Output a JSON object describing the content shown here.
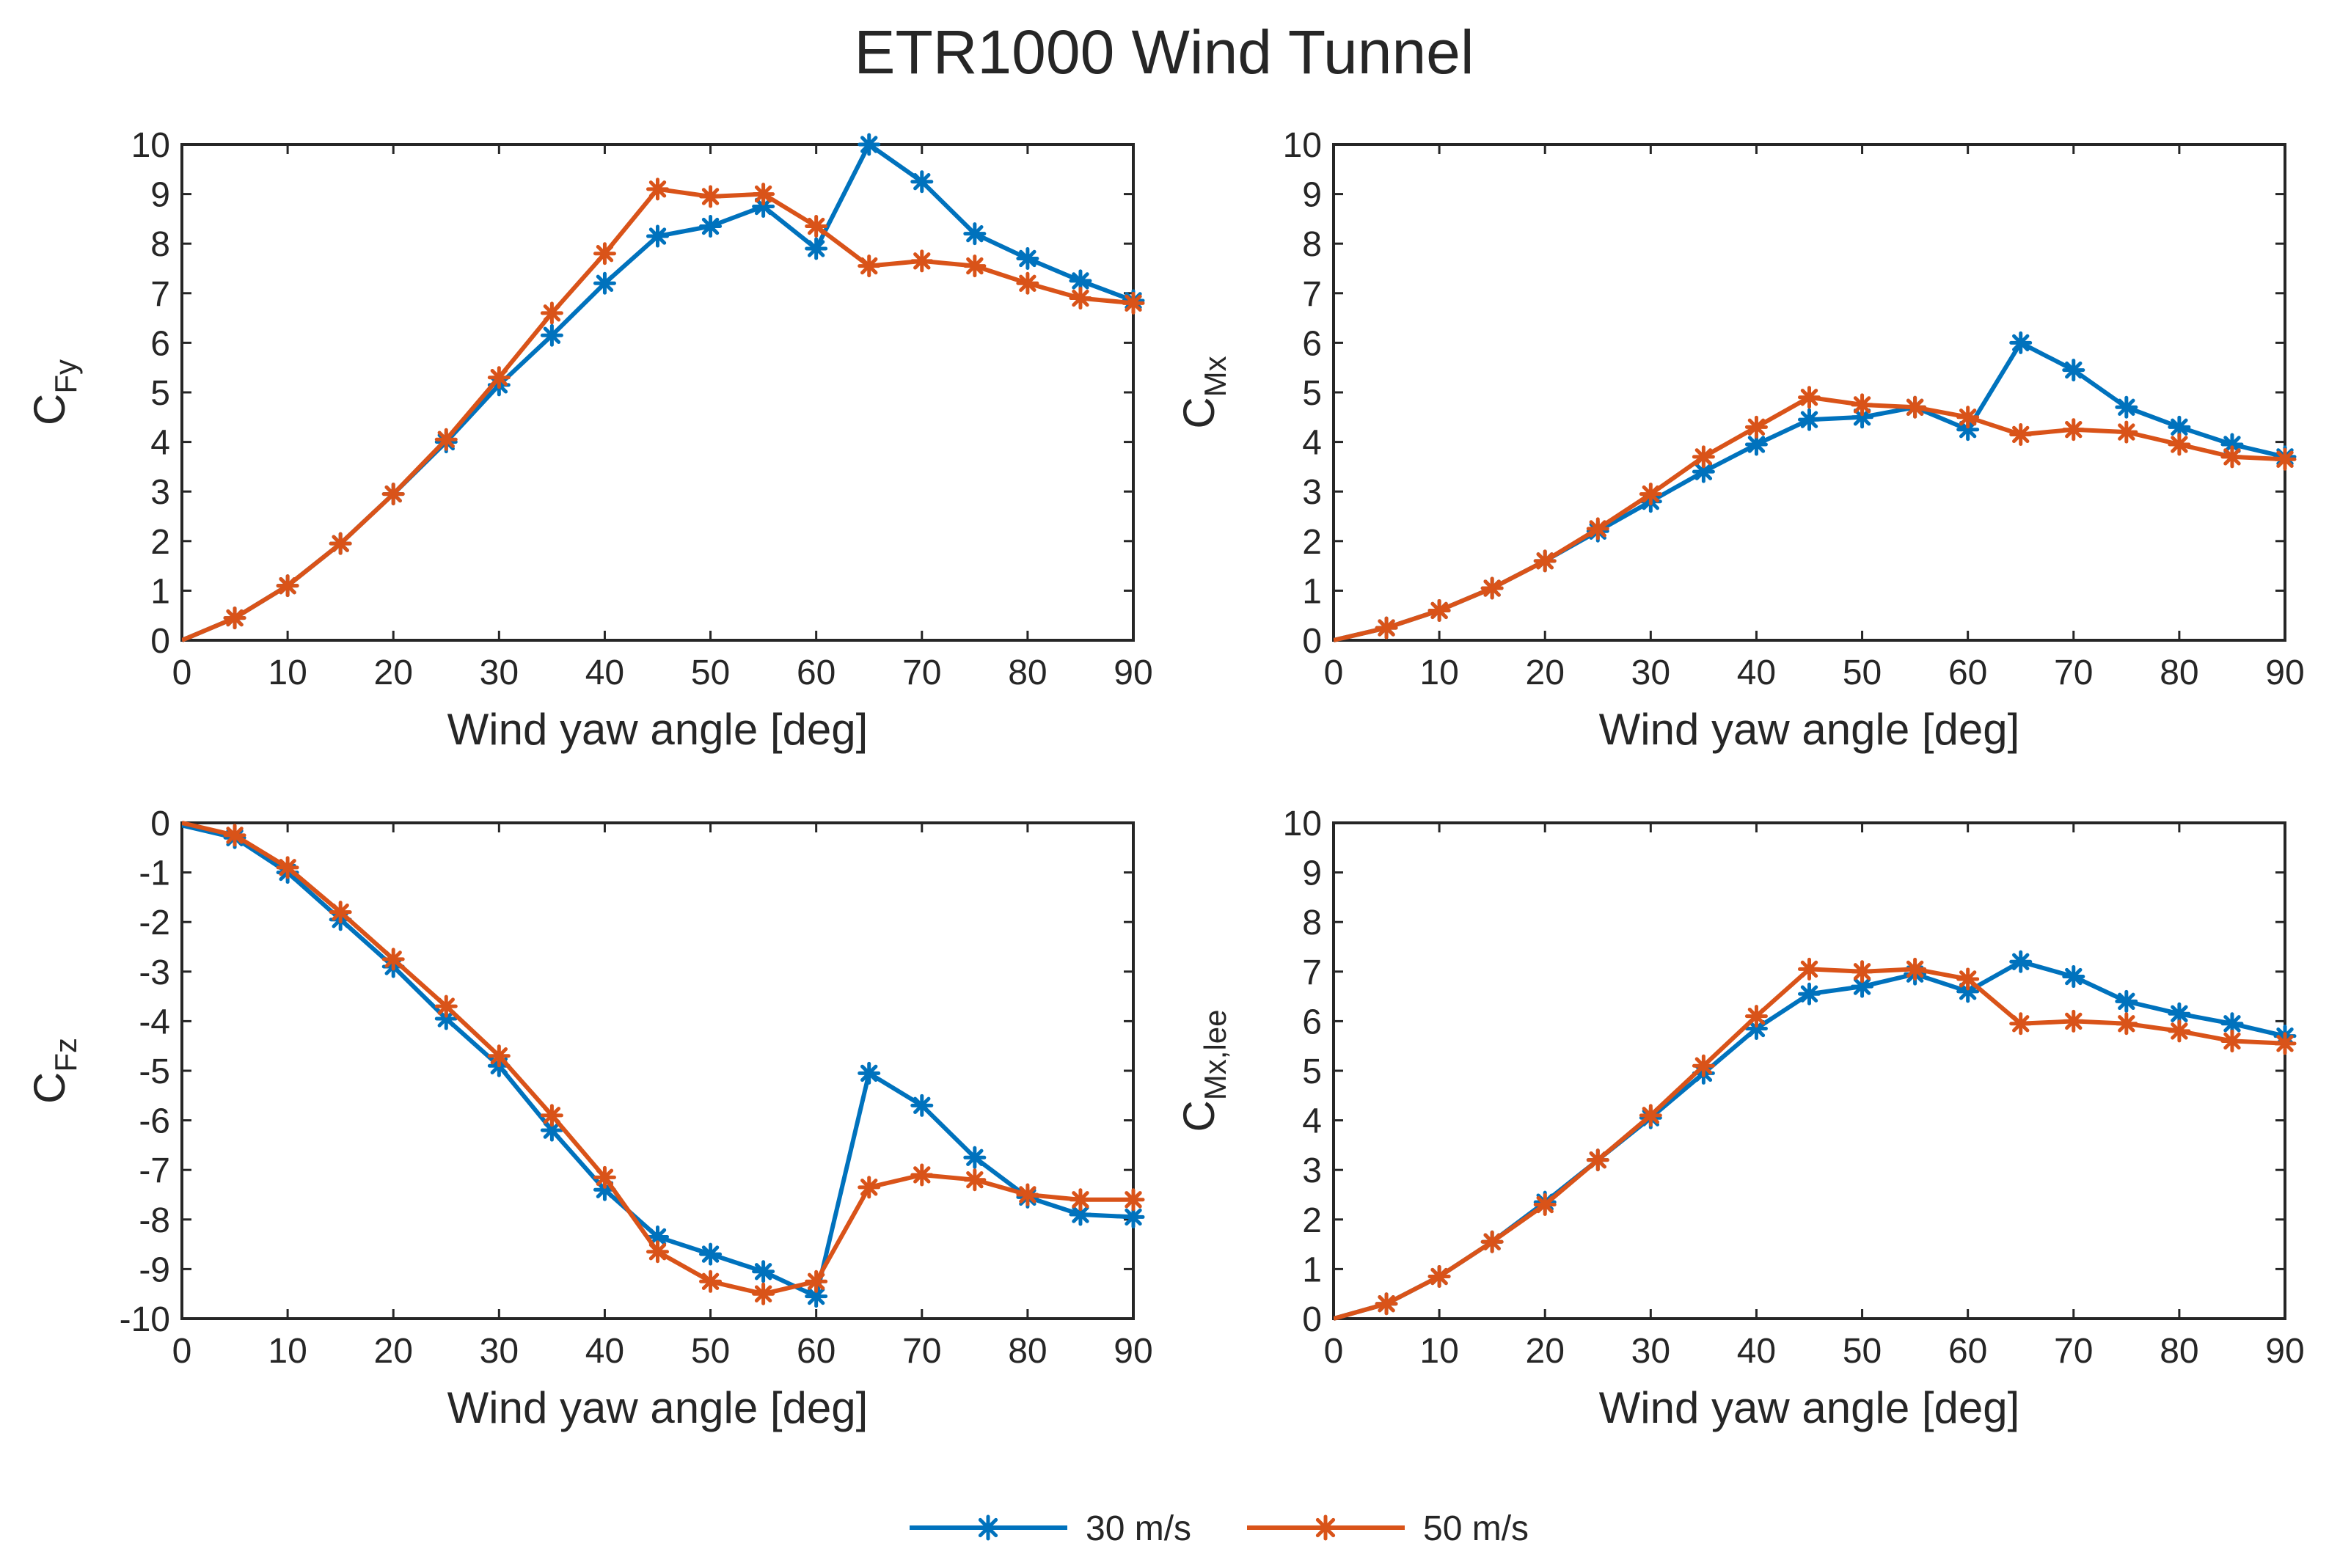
{
  "figure": {
    "title": "ETR1000 Wind Tunnel",
    "legend": {
      "placement": "bottom-center",
      "entries": [
        {
          "label": "30 m/s",
          "color": "#0072BD"
        },
        {
          "label": "50 m/s",
          "color": "#D95319"
        }
      ]
    }
  },
  "chart_data": [
    {
      "type": "line",
      "marker": "asterisk",
      "xlabel": "Wind yaw angle [deg]",
      "ylabel": {
        "base": "C",
        "sub": "Fy"
      },
      "xlim": [
        0,
        90
      ],
      "ylim": [
        0,
        10
      ],
      "xticks": [
        0,
        10,
        20,
        30,
        40,
        50,
        60,
        70,
        80,
        90
      ],
      "yticks": [
        0,
        1,
        2,
        3,
        4,
        5,
        6,
        7,
        8,
        9,
        10
      ],
      "grid": false,
      "x": [
        0,
        5,
        10,
        15,
        20,
        25,
        30,
        35,
        40,
        45,
        50,
        55,
        60,
        65,
        70,
        75,
        80,
        85,
        90
      ],
      "series": [
        {
          "name": "30 m/s",
          "color": "#0072BD",
          "values": [
            0,
            0.45,
            1.1,
            1.95,
            2.95,
            4.0,
            5.15,
            6.15,
            7.2,
            8.15,
            8.35,
            8.75,
            7.9,
            10.0,
            9.25,
            8.2,
            7.7,
            7.25,
            6.85
          ]
        },
        {
          "name": "50 m/s",
          "color": "#D95319",
          "values": [
            0,
            0.45,
            1.1,
            1.95,
            2.95,
            4.05,
            5.3,
            6.6,
            7.8,
            9.1,
            8.95,
            9.0,
            8.35,
            7.55,
            7.65,
            7.55,
            7.2,
            6.9,
            6.8
          ]
        }
      ]
    },
    {
      "type": "line",
      "marker": "asterisk",
      "xlabel": "Wind yaw angle [deg]",
      "ylabel": {
        "base": "C",
        "sub": "Mx"
      },
      "xlim": [
        0,
        90
      ],
      "ylim": [
        0,
        10
      ],
      "xticks": [
        0,
        10,
        20,
        30,
        40,
        50,
        60,
        70,
        80,
        90
      ],
      "yticks": [
        0,
        1,
        2,
        3,
        4,
        5,
        6,
        7,
        8,
        9,
        10
      ],
      "grid": false,
      "x": [
        0,
        5,
        10,
        15,
        20,
        25,
        30,
        35,
        40,
        45,
        50,
        55,
        60,
        65,
        70,
        75,
        80,
        85,
        90
      ],
      "series": [
        {
          "name": "30 m/s",
          "color": "#0072BD",
          "values": [
            0,
            0.25,
            0.6,
            1.05,
            1.6,
            2.2,
            2.8,
            3.4,
            3.95,
            4.45,
            4.5,
            4.7,
            4.25,
            6.0,
            5.45,
            4.7,
            4.3,
            3.95,
            3.7
          ]
        },
        {
          "name": "50 m/s",
          "color": "#D95319",
          "values": [
            0,
            0.25,
            0.6,
            1.05,
            1.6,
            2.25,
            2.95,
            3.7,
            4.3,
            4.9,
            4.75,
            4.7,
            4.5,
            4.15,
            4.25,
            4.2,
            3.95,
            3.7,
            3.65
          ]
        }
      ]
    },
    {
      "type": "line",
      "marker": "asterisk",
      "xlabel": "Wind yaw angle [deg]",
      "ylabel": {
        "base": "C",
        "sub": "Fz"
      },
      "xlim": [
        0,
        90
      ],
      "ylim": [
        -10,
        0
      ],
      "xticks": [
        0,
        10,
        20,
        30,
        40,
        50,
        60,
        70,
        80,
        90
      ],
      "yticks": [
        -10,
        -9,
        -8,
        -7,
        -6,
        -5,
        -4,
        -3,
        -2,
        -1,
        0
      ],
      "grid": false,
      "x": [
        0,
        5,
        10,
        15,
        20,
        25,
        30,
        35,
        40,
        45,
        50,
        55,
        60,
        65,
        70,
        75,
        80,
        85,
        90
      ],
      "series": [
        {
          "name": "30 m/s",
          "color": "#0072BD",
          "values": [
            -0.05,
            -0.3,
            -1.0,
            -1.95,
            -2.9,
            -3.95,
            -4.9,
            -6.2,
            -7.4,
            -8.35,
            -8.7,
            -9.05,
            -9.55,
            -5.05,
            -5.7,
            -6.75,
            -7.55,
            -7.9,
            -7.95
          ]
        },
        {
          "name": "50 m/s",
          "color": "#D95319",
          "values": [
            0,
            -0.25,
            -0.9,
            -1.8,
            -2.75,
            -3.7,
            -4.7,
            -5.9,
            -7.15,
            -8.65,
            -9.25,
            -9.5,
            -9.25,
            -7.35,
            -7.1,
            -7.2,
            -7.5,
            -7.6,
            -7.6
          ]
        }
      ]
    },
    {
      "type": "line",
      "marker": "asterisk",
      "xlabel": "Wind yaw angle [deg]",
      "ylabel": {
        "base": "C",
        "sub": "Mx,lee"
      },
      "xlim": [
        0,
        90
      ],
      "ylim": [
        0,
        10
      ],
      "xticks": [
        0,
        10,
        20,
        30,
        40,
        50,
        60,
        70,
        80,
        90
      ],
      "yticks": [
        0,
        1,
        2,
        3,
        4,
        5,
        6,
        7,
        8,
        9,
        10
      ],
      "grid": false,
      "x": [
        0,
        5,
        10,
        15,
        20,
        25,
        30,
        35,
        40,
        45,
        50,
        55,
        60,
        65,
        70,
        75,
        80,
        85,
        90
      ],
      "series": [
        {
          "name": "30 m/s",
          "color": "#0072BD",
          "values": [
            0,
            0.3,
            0.85,
            1.55,
            2.35,
            3.2,
            4.05,
            4.95,
            5.85,
            6.55,
            6.7,
            6.95,
            6.6,
            7.2,
            6.9,
            6.4,
            6.15,
            5.95,
            5.7
          ]
        },
        {
          "name": "50 m/s",
          "color": "#D95319",
          "values": [
            0,
            0.3,
            0.85,
            1.55,
            2.3,
            3.2,
            4.1,
            5.1,
            6.1,
            7.05,
            7.0,
            7.05,
            6.85,
            5.95,
            6.0,
            5.95,
            5.8,
            5.6,
            5.55
          ]
        }
      ]
    }
  ]
}
